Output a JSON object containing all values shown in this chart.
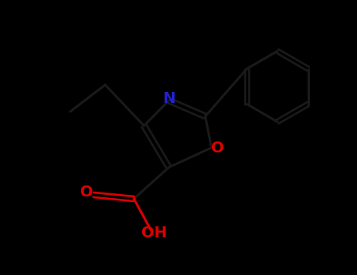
{
  "background_color": "#000000",
  "bond_color": "#1a1a1a",
  "nitrogen_color": "#2222CC",
  "oxygen_color": "#DD0000",
  "bond_width": 2.2,
  "label_fontsize": 14,
  "figsize": [
    4.55,
    3.5
  ],
  "dpi": 100,
  "xlim": [
    0,
    9
  ],
  "ylim": [
    0,
    7
  ]
}
